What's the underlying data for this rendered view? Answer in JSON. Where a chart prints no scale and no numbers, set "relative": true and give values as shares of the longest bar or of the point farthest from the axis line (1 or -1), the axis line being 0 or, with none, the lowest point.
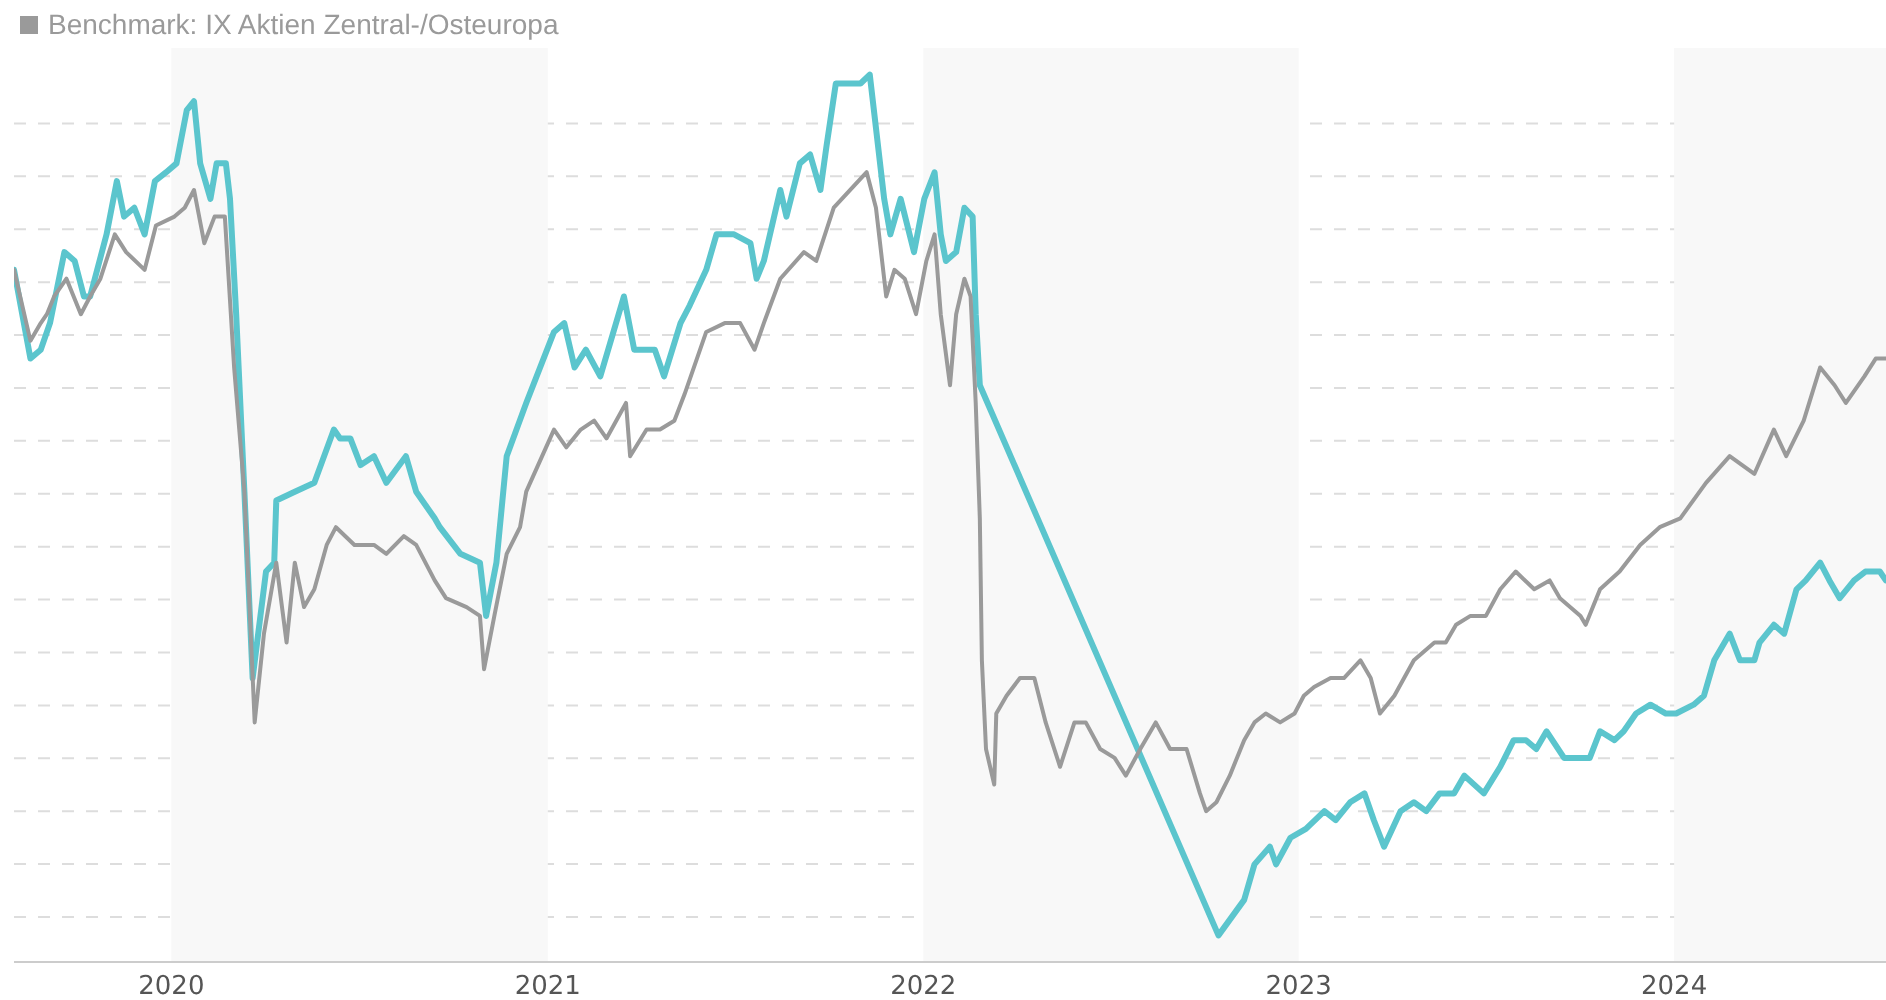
{
  "chart_data": {
    "type": "line",
    "relative": true,
    "grid": "y",
    "legend": "top left",
    "xlim": [
      "2019-08-01",
      "2024-07-25"
    ],
    "xticks": [
      {
        "value": "2020-01-01",
        "label": "2020"
      },
      {
        "value": "2021-01-01",
        "label": "2021"
      },
      {
        "value": "2022-01-01",
        "label": "2022"
      },
      {
        "value": "2023-01-01",
        "label": "2023"
      },
      {
        "value": "2024-01-01",
        "label": "2024"
      }
    ],
    "bands": [
      {
        "axis": "x",
        "from": "2020-01-01",
        "to": "2021-01-01",
        "color": "#f8f8f8"
      },
      {
        "axis": "x",
        "from": "2022-01-01",
        "to": "2023-01-01",
        "color": "#f8f8f8"
      },
      {
        "axis": "x",
        "from": "2024-01-01",
        "to": "2024-07-25",
        "color": "#f8f8f8"
      }
    ],
    "series": [
      {
        "color": "#5bc5cd",
        "x": [
          "2019-08-01",
          "2019-08-17",
          "2019-08-27",
          "2019-09-05",
          "2019-09-19",
          "2019-09-29",
          "2019-10-08",
          "2019-10-14",
          "2019-10-30",
          "2019-11-09",
          "2019-11-16",
          "2019-11-26",
          "2019-12-06",
          "2019-12-16",
          "2019-12-27",
          "2020-01-06",
          "2020-01-16",
          "2020-01-23",
          "2020-01-29",
          "2020-02-08",
          "2020-02-14",
          "2020-02-23",
          "2020-02-27",
          "2020-03-04",
          "2020-03-12",
          "2020-03-20",
          "2020-04-02",
          "2020-04-10",
          "2020-04-12",
          "2020-04-30",
          "2020-05-19",
          "2020-06-07",
          "2020-06-13",
          "2020-06-23",
          "2020-07-03",
          "2020-07-16",
          "2020-07-28",
          "2020-08-16",
          "2020-08-26",
          "2020-09-13",
          "2020-09-18",
          "2020-10-08",
          "2020-10-27",
          "2020-11-02",
          "2020-11-12",
          "2020-11-22",
          "2020-12-11",
          "2021-01-07",
          "2021-01-17",
          "2021-01-27",
          "2021-02-07",
          "2021-02-21",
          "2021-03-16",
          "2021-03-26",
          "2021-04-15",
          "2021-04-24",
          "2021-05-10",
          "2021-05-19",
          "2021-06-04",
          "2021-06-14",
          "2021-07-01",
          "2021-07-17",
          "2021-07-23",
          "2021-07-30",
          "2021-08-15",
          "2021-08-21",
          "2021-09-03",
          "2021-09-13",
          "2021-09-23",
          "2021-09-29",
          "2021-10-08",
          "2021-10-18",
          "2021-11-01",
          "2021-11-10",
          "2021-11-16",
          "2021-11-24",
          "2021-11-30",
          "2021-12-10",
          "2021-12-23",
          "2022-01-02",
          "2022-01-12",
          "2022-01-18",
          "2022-01-23",
          "2022-02-02",
          "2022-02-10",
          "2022-02-18",
          "2022-02-21",
          "2022-02-25",
          "2022-10-15",
          "2022-11-09",
          "2022-11-19",
          "2022-12-04",
          "2022-12-10",
          "2022-12-24",
          "2023-01-08",
          "2023-01-26",
          "2023-02-06",
          "2023-02-20",
          "2023-03-06",
          "2023-03-15",
          "2023-03-25",
          "2023-04-10",
          "2023-04-23",
          "2023-05-05",
          "2023-05-18",
          "2023-06-01",
          "2023-06-11",
          "2023-06-30",
          "2023-07-16",
          "2023-07-29",
          "2023-08-10",
          "2023-08-20",
          "2023-08-30",
          "2023-09-16",
          "2023-09-28",
          "2023-10-11",
          "2023-10-21",
          "2023-11-04",
          "2023-11-13",
          "2023-11-25",
          "2023-12-09",
          "2023-12-24",
          "2024-01-03",
          "2024-01-20",
          "2024-01-30",
          "2024-02-09",
          "2024-02-24",
          "2024-03-05",
          "2024-03-19",
          "2024-03-24",
          "2024-04-07",
          "2024-04-17",
          "2024-04-29",
          "2024-05-08",
          "2024-05-22",
          "2024-05-31",
          "2024-06-10",
          "2024-06-24",
          "2024-07-05",
          "2024-07-19",
          "2024-07-25"
        ],
        "values": [
          0.78,
          0.68,
          0.69,
          0.72,
          0.8,
          0.79,
          0.75,
          0.75,
          0.82,
          0.88,
          0.84,
          0.85,
          0.82,
          0.88,
          0.89,
          0.9,
          0.96,
          0.97,
          0.9,
          0.86,
          0.9,
          0.9,
          0.86,
          0.73,
          0.53,
          0.32,
          0.44,
          0.45,
          0.52,
          0.53,
          0.54,
          0.6,
          0.59,
          0.59,
          0.56,
          0.57,
          0.54,
          0.57,
          0.53,
          0.5,
          0.49,
          0.46,
          0.45,
          0.39,
          0.45,
          0.57,
          0.63,
          0.71,
          0.72,
          0.67,
          0.69,
          0.66,
          0.75,
          0.69,
          0.69,
          0.66,
          0.72,
          0.74,
          0.78,
          0.82,
          0.82,
          0.81,
          0.77,
          0.79,
          0.87,
          0.84,
          0.9,
          0.91,
          0.87,
          0.92,
          0.99,
          0.99,
          0.99,
          1.0,
          0.94,
          0.86,
          0.82,
          0.86,
          0.8,
          0.86,
          0.89,
          0.82,
          0.79,
          0.8,
          0.85,
          0.84,
          0.73,
          0.65,
          0.03,
          0.07,
          0.11,
          0.13,
          0.11,
          0.14,
          0.15,
          0.17,
          0.16,
          0.18,
          0.19,
          0.16,
          0.13,
          0.17,
          0.18,
          0.17,
          0.19,
          0.19,
          0.21,
          0.19,
          0.22,
          0.25,
          0.25,
          0.24,
          0.26,
          0.23,
          0.23,
          0.23,
          0.26,
          0.25,
          0.26,
          0.28,
          0.29,
          0.28,
          0.28,
          0.29,
          0.3,
          0.34,
          0.37,
          0.34,
          0.34,
          0.36,
          0.38,
          0.37,
          0.42,
          0.43,
          0.45,
          0.43,
          0.41,
          0.43,
          0.44,
          0.44,
          0.43
        ]
      },
      {
        "name": "Benchmark: IX Aktien Zentral-/Osteuropa",
        "color": "#9a9a9a",
        "x": [
          "2019-08-01",
          "2019-08-07",
          "2019-08-17",
          "2019-08-27",
          "2019-09-02",
          "2019-09-09",
          "2019-09-21",
          "2019-10-05",
          "2019-10-14",
          "2019-10-24",
          "2019-11-07",
          "2019-11-18",
          "2019-12-06",
          "2019-12-17",
          "2020-01-04",
          "2020-01-14",
          "2020-01-23",
          "2020-02-02",
          "2020-02-12",
          "2020-02-22",
          "2020-03-02",
          "2020-03-12",
          "2020-03-22",
          "2020-03-31",
          "2020-04-12",
          "2020-04-22",
          "2020-04-30",
          "2020-05-09",
          "2020-05-19",
          "2020-05-31",
          "2020-06-09",
          "2020-06-27",
          "2020-07-16",
          "2020-07-28",
          "2020-08-14",
          "2020-08-26",
          "2020-09-13",
          "2020-09-24",
          "2020-10-14",
          "2020-10-27",
          "2020-10-31",
          "2020-11-10",
          "2020-11-22",
          "2020-12-05",
          "2020-12-11",
          "2021-01-07",
          "2021-01-19",
          "2021-02-02",
          "2021-02-15",
          "2021-02-27",
          "2021-03-18",
          "2021-03-22",
          "2021-04-07",
          "2021-04-20",
          "2021-05-04",
          "2021-05-14",
          "2021-06-04",
          "2021-06-22",
          "2021-07-07",
          "2021-07-21",
          "2021-07-30",
          "2021-08-15",
          "2021-09-07",
          "2021-09-19",
          "2021-10-06",
          "2021-10-22",
          "2021-11-07",
          "2021-11-16",
          "2021-11-26",
          "2021-12-04",
          "2021-12-14",
          "2021-12-25",
          "2022-01-04",
          "2022-01-12",
          "2022-01-18",
          "2022-01-27",
          "2022-02-02",
          "2022-02-10",
          "2022-02-16",
          "2022-02-21",
          "2022-02-25",
          "2022-02-27",
          "2022-03-03",
          "2022-03-11",
          "2022-03-13",
          "2022-03-23",
          "2022-04-05",
          "2022-04-19",
          "2022-04-30",
          "2022-05-14",
          "2022-05-28",
          "2022-06-08",
          "2022-06-22",
          "2022-07-06",
          "2022-07-17",
          "2022-07-31",
          "2022-08-15",
          "2022-08-29",
          "2022-09-14",
          "2022-09-27",
          "2022-10-03",
          "2022-10-13",
          "2022-10-26",
          "2022-11-09",
          "2022-11-19",
          "2022-11-30",
          "2022-12-14",
          "2022-12-28",
          "2023-01-06",
          "2023-01-16",
          "2023-02-01",
          "2023-02-14",
          "2023-03-02",
          "2023-03-12",
          "2023-03-21",
          "2023-04-04",
          "2023-04-23",
          "2023-05-13",
          "2023-05-24",
          "2023-06-03",
          "2023-06-17",
          "2023-07-02",
          "2023-07-16",
          "2023-07-31",
          "2023-08-18",
          "2023-09-02",
          "2023-09-12",
          "2023-10-02",
          "2023-10-07",
          "2023-10-21",
          "2023-11-09",
          "2023-11-29",
          "2023-12-18",
          "2024-01-07",
          "2024-02-01",
          "2024-02-24",
          "2024-03-19",
          "2024-04-07",
          "2024-04-19",
          "2024-05-06",
          "2024-05-22",
          "2024-06-05",
          "2024-06-16",
          "2024-07-04",
          "2024-07-15",
          "2024-07-25"
        ],
        "values": [
          0.78,
          0.75,
          0.7,
          0.72,
          0.73,
          0.75,
          0.77,
          0.73,
          0.75,
          0.77,
          0.82,
          0.8,
          0.78,
          0.83,
          0.84,
          0.85,
          0.87,
          0.81,
          0.84,
          0.84,
          0.67,
          0.53,
          0.27,
          0.37,
          0.45,
          0.36,
          0.45,
          0.4,
          0.42,
          0.47,
          0.49,
          0.47,
          0.47,
          0.46,
          0.48,
          0.47,
          0.43,
          0.41,
          0.4,
          0.39,
          0.33,
          0.39,
          0.46,
          0.49,
          0.53,
          0.6,
          0.58,
          0.6,
          0.61,
          0.59,
          0.63,
          0.57,
          0.6,
          0.6,
          0.61,
          0.64,
          0.71,
          0.72,
          0.72,
          0.69,
          0.72,
          0.77,
          0.8,
          0.79,
          0.85,
          0.87,
          0.89,
          0.85,
          0.75,
          0.78,
          0.77,
          0.73,
          0.79,
          0.82,
          0.73,
          0.65,
          0.73,
          0.77,
          0.75,
          0.63,
          0.5,
          0.34,
          0.24,
          0.2,
          0.28,
          0.3,
          0.32,
          0.32,
          0.27,
          0.22,
          0.27,
          0.27,
          0.24,
          0.23,
          0.21,
          0.24,
          0.27,
          0.24,
          0.24,
          0.19,
          0.17,
          0.18,
          0.21,
          0.25,
          0.27,
          0.28,
          0.27,
          0.28,
          0.3,
          0.31,
          0.32,
          0.32,
          0.34,
          0.32,
          0.28,
          0.3,
          0.34,
          0.36,
          0.36,
          0.38,
          0.39,
          0.39,
          0.42,
          0.44,
          0.42,
          0.43,
          0.41,
          0.39,
          0.38,
          0.42,
          0.44,
          0.47,
          0.49,
          0.5,
          0.54,
          0.57,
          0.55,
          0.6,
          0.57,
          0.61,
          0.67,
          0.65,
          0.63,
          0.66,
          0.68,
          0.68
        ]
      }
    ]
  }
}
